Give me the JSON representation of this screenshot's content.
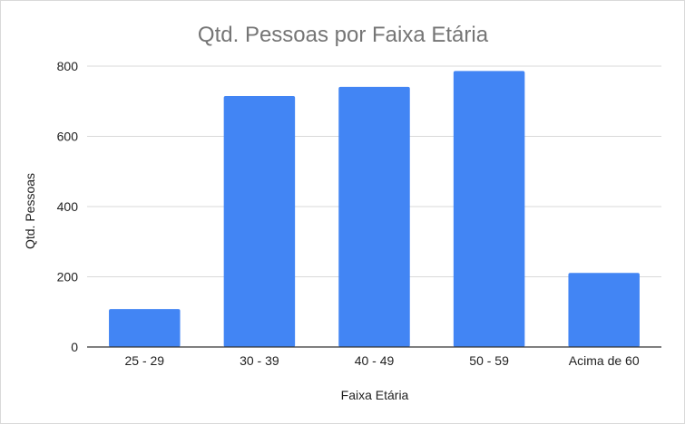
{
  "chart_data": {
    "type": "bar",
    "title": "Qtd. Pessoas por Faixa Etária",
    "xlabel": "Faixa Etária",
    "ylabel": "Qtd. Pessoas",
    "categories": [
      "25 - 29",
      "30 - 39",
      "40 - 49",
      "50 - 59",
      "Acima de 60"
    ],
    "values": [
      108,
      715,
      741,
      786,
      211
    ],
    "ylim": [
      0,
      800
    ],
    "yticks": [
      0,
      200,
      400,
      600,
      800
    ],
    "grid": true,
    "legend": "none",
    "bar_color": "#4285f4"
  }
}
